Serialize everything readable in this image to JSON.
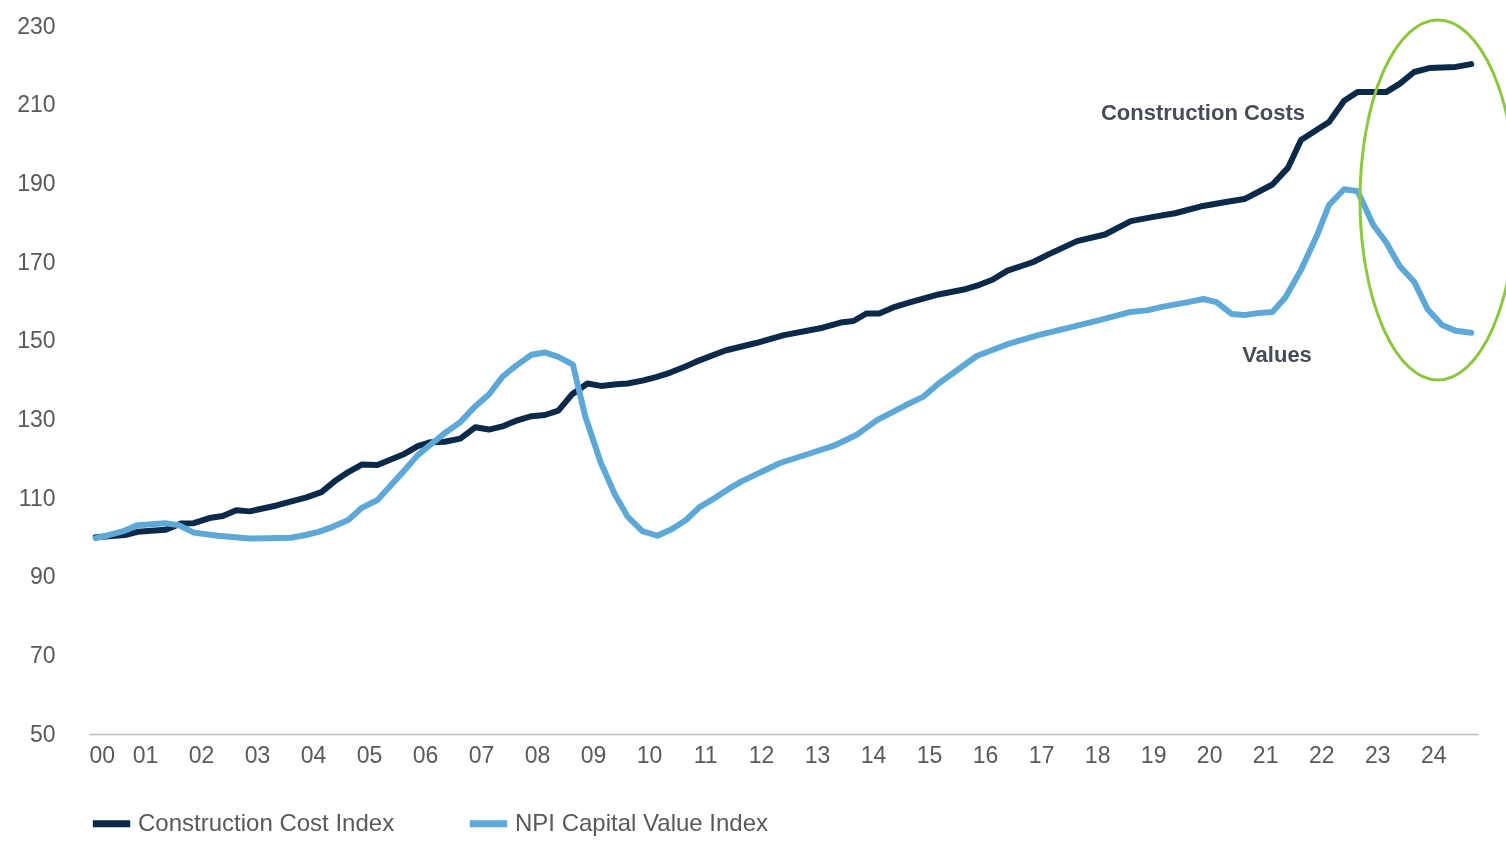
{
  "chart_data": {
    "type": "line",
    "xlim": [
      2000,
      2024.8
    ],
    "xticks": [
      {
        "value": 2000,
        "label": "00"
      },
      {
        "value": 2001,
        "label": "01"
      },
      {
        "value": 2002,
        "label": "02"
      },
      {
        "value": 2003,
        "label": "03"
      },
      {
        "value": 2004,
        "label": "04"
      },
      {
        "value": 2005,
        "label": "05"
      },
      {
        "value": 2006,
        "label": "06"
      },
      {
        "value": 2007,
        "label": "07"
      },
      {
        "value": 2008,
        "label": "08"
      },
      {
        "value": 2009,
        "label": "09"
      },
      {
        "value": 2010,
        "label": "10"
      },
      {
        "value": 2011,
        "label": "11"
      },
      {
        "value": 2012,
        "label": "12"
      },
      {
        "value": 2013,
        "label": "13"
      },
      {
        "value": 2014,
        "label": "14"
      },
      {
        "value": 2015,
        "label": "15"
      },
      {
        "value": 2016,
        "label": "16"
      },
      {
        "value": 2017,
        "label": "17"
      },
      {
        "value": 2018,
        "label": "18"
      },
      {
        "value": 2019,
        "label": "19"
      },
      {
        "value": 2020,
        "label": "20"
      },
      {
        "value": 2021,
        "label": "21"
      },
      {
        "value": 2022,
        "label": "22"
      },
      {
        "value": 2023,
        "label": "23"
      },
      {
        "value": 2024,
        "label": "24"
      }
    ],
    "ylim": [
      50,
      230
    ],
    "yticks": [
      50,
      70,
      90,
      110,
      130,
      150,
      170,
      190,
      210,
      230
    ],
    "grid": false,
    "legend": "bottom",
    "marker": "none",
    "line_style": "solid",
    "series": [
      {
        "name": "Construction Cost Index",
        "color": "#0b2a4a",
        "x": [
          2000.12,
          2000.64,
          2000.87,
          2001.36,
          2001.64,
          2001.87,
          2002.15,
          2002.39,
          2002.63,
          2002.87,
          2003.35,
          2003.63,
          2003.87,
          2004.15,
          2004.39,
          2004.63,
          2004.87,
          2005.15,
          2005.63,
          2005.87,
          2006.1,
          2006.35,
          2006.63,
          2006.9,
          2007.14,
          2007.38,
          2007.62,
          2007.9,
          2008.14,
          2008.38,
          2008.62,
          2008.9,
          2009.14,
          2009.42,
          2009.62,
          2009.9,
          2010.14,
          2010.38,
          2010.66,
          2010.9,
          2011.36,
          2011.91,
          2012.41,
          2013.1,
          2013.42,
          2013.65,
          2013.88,
          2014.11,
          2014.39,
          2014.67,
          2015.12,
          2015.62,
          2015.9,
          2016.13,
          2016.4,
          2016.86,
          2017.14,
          2017.64,
          2018.14,
          2018.6,
          2018.98,
          2019.39,
          2019.84,
          2020.35,
          2020.63,
          2021.13,
          2021.41,
          2021.64,
          2022.14,
          2022.41,
          2022.65,
          2023.16,
          2023.4,
          2023.66,
          2023.93,
          2024.4,
          2024.68
        ],
        "values": [
          100,
          100.6,
          101.4,
          101.9,
          103.5,
          103.6,
          104.9,
          105.4,
          106.9,
          106.6,
          108.1,
          109.2,
          110.1,
          111.5,
          114.3,
          116.6,
          118.5,
          118.4,
          121.2,
          123.2,
          124.2,
          124.3,
          125.1,
          128,
          127.4,
          128.2,
          129.6,
          130.8,
          131.1,
          132.2,
          136.3,
          139.1,
          138.5,
          138.9,
          139.1,
          139.9,
          140.8,
          141.9,
          143.5,
          145,
          147.5,
          149.4,
          151.4,
          153.3,
          154.6,
          155,
          156.9,
          156.9,
          158.6,
          159.8,
          161.6,
          163,
          164.2,
          165.5,
          167.8,
          170,
          172,
          175.3,
          177,
          180.4,
          181.4,
          182.4,
          184.1,
          185.4,
          186,
          189.7,
          194,
          201,
          205.6,
          211,
          213.2,
          213.2,
          215.3,
          218.3,
          219.3,
          219.6,
          220.3
        ]
      },
      {
        "name": "NPI Capital Value Index",
        "color": "#5ea8d8",
        "x": [
          2000.12,
          2000.36,
          2000.6,
          2000.87,
          2001.36,
          2001.6,
          2001.87,
          2002.3,
          2002.87,
          2003.6,
          2003.87,
          2004.1,
          2004.34,
          2004.63,
          2004.87,
          2005.15,
          2005.35,
          2005.58,
          2005.87,
          2006.1,
          2006.38,
          2006.63,
          2006.88,
          2007.14,
          2007.38,
          2007.62,
          2007.9,
          2008.14,
          2008.38,
          2008.64,
          2008.86,
          2009.14,
          2009.39,
          2009.62,
          2009.88,
          2010.15,
          2010.41,
          2010.66,
          2010.9,
          2011.14,
          2011.42,
          2011.66,
          2011.94,
          2012.34,
          2012.8,
          2013.3,
          2013.7,
          2014.07,
          2014.57,
          2014.89,
          2015.16,
          2015.48,
          2015.85,
          2016.4,
          2016.95,
          2017.5,
          2018.06,
          2018.6,
          2018.89,
          2019.16,
          2019.62,
          2019.9,
          2020.13,
          2020.4,
          2020.63,
          2020.86,
          2021.13,
          2021.36,
          2021.64,
          2021.92,
          2022.14,
          2022.41,
          2022.65,
          2022.93,
          2023.16,
          2023.4,
          2023.66,
          2023.9,
          2024.16,
          2024.4,
          2024.68
        ],
        "values": [
          99.8,
          100.6,
          101.5,
          103.1,
          103.6,
          103.1,
          101.2,
          100.4,
          99.7,
          99.9,
          100.6,
          101.4,
          102.6,
          104.4,
          107.5,
          109.5,
          112.6,
          116.2,
          120.9,
          123.6,
          126.8,
          129.3,
          133.1,
          136.3,
          140.8,
          143.6,
          146.4,
          147,
          145.9,
          143.9,
          130.8,
          118.9,
          110.9,
          105.2,
          101.6,
          100.4,
          102.1,
          104.4,
          107.7,
          109.7,
          112.3,
          114.3,
          116.2,
          118.9,
          121,
          123.3,
          126,
          129.8,
          133.5,
          135.7,
          139,
          142.3,
          146.1,
          149.1,
          151.4,
          153.3,
          155.3,
          157.3,
          157.7,
          158.6,
          159.8,
          160.6,
          159.8,
          156.8,
          156.5,
          157,
          157.3,
          161,
          168,
          176.6,
          184.5,
          188.5,
          188,
          179.4,
          175,
          169,
          165,
          158,
          154,
          152.5,
          152
        ]
      }
    ],
    "annotations": [
      "Construction Costs",
      "Values"
    ]
  }
}
